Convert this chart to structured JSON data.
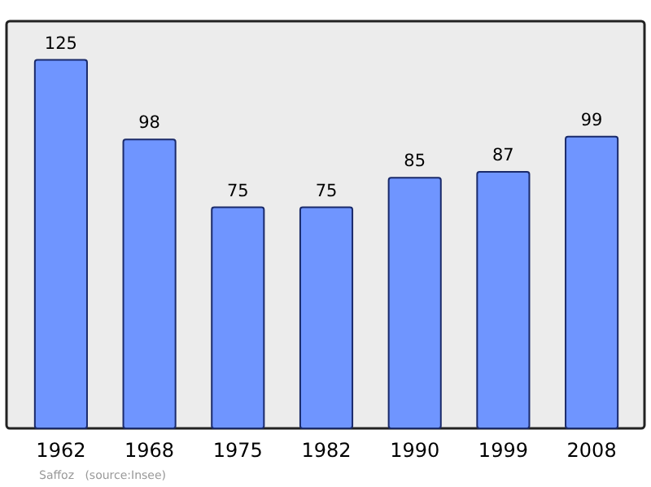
{
  "chart_data": {
    "type": "bar",
    "categories": [
      "1962",
      "1968",
      "1975",
      "1982",
      "1990",
      "1999",
      "2008"
    ],
    "values": [
      125,
      98,
      75,
      75,
      85,
      87,
      99
    ],
    "color": "#6f95ff",
    "data_labels": true,
    "annotations": [
      "Saffoz   (source:Insee)"
    ]
  }
}
